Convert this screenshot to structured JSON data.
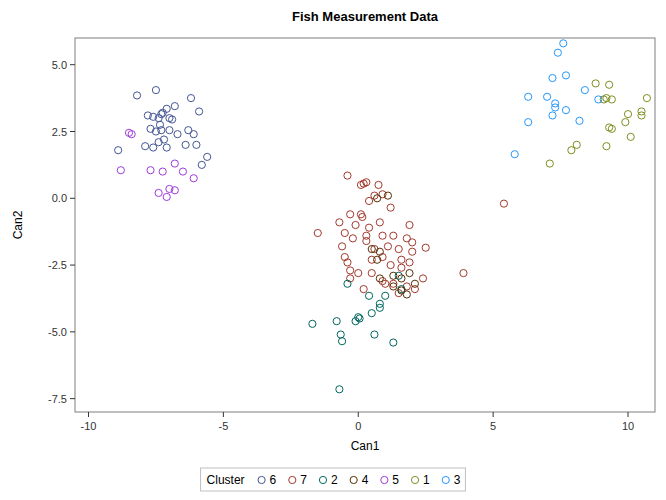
{
  "chart_data": {
    "type": "scatter",
    "title": "Fish Measurement Data",
    "x_label": "Can1",
    "y_label": "Can2",
    "legend_title": "Cluster",
    "legend": "bottom",
    "grid": false,
    "marker": "open-circle",
    "xlim": [
      -10.5,
      11
    ],
    "ylim": [
      -8,
      6
    ],
    "xticks": [
      -10,
      -5,
      0,
      5,
      10
    ],
    "yticks": [
      {
        "value": -7.5,
        "label": "-7.5"
      },
      {
        "value": -5,
        "label": "-5.0"
      },
      {
        "value": -2.5,
        "label": "-2.5"
      },
      {
        "value": 0,
        "label": "0.0"
      },
      {
        "value": 2.5,
        "label": "2.5"
      },
      {
        "value": 5,
        "label": "5.0"
      }
    ],
    "series": [
      {
        "name": "6",
        "color": "#445694",
        "x": [
          -8.9,
          -8.2,
          -7.5,
          -6.2,
          -5.9,
          -7.8,
          -7.6,
          -7.4,
          -7.3,
          -7.25,
          -7.0,
          -6.8,
          -7.1,
          -6.9,
          -7.7,
          -7.5,
          -7.3,
          -7.0,
          -6.7,
          -6.3,
          -6.1,
          -7.2,
          -7.4,
          -7.6,
          -7.9,
          -7.1,
          -6.4,
          -6.0,
          -5.8,
          -5.6,
          -7.35
        ],
        "values": [
          1.8,
          3.85,
          4.05,
          3.75,
          3.25,
          3.1,
          3.05,
          3.0,
          3.15,
          3.2,
          3.0,
          3.45,
          3.35,
          2.95,
          2.6,
          2.5,
          2.55,
          2.55,
          2.4,
          2.55,
          2.4,
          2.2,
          2.1,
          1.9,
          1.95,
          1.9,
          2.0,
          2.0,
          1.25,
          1.55,
          2.75
        ]
      },
      {
        "name": "7",
        "color": "#A23A2E",
        "x": [
          -0.4,
          0.1,
          0.3,
          0.2,
          0.75,
          0.6,
          0.9,
          1.2,
          0.4,
          -0.7,
          -0.3,
          0.15,
          0.1,
          -0.1,
          0.4,
          0.8,
          1.9,
          -1.5,
          -0.5,
          -0.2,
          0.3,
          0.9,
          1.3,
          1.8,
          -0.6,
          0.3,
          0.6,
          1.1,
          1.5,
          2.0,
          2.5,
          -0.5,
          -0.4,
          0.5,
          0.9,
          1.6,
          2.0,
          -0.3,
          0.0,
          0.5,
          1.2,
          1.6,
          1.9,
          2.4,
          0.2,
          -0.3,
          1.3,
          1.8,
          2.1,
          3.9,
          1.5,
          0.9,
          1.0,
          5.4
        ],
        "values": [
          0.85,
          0.5,
          0.6,
          0.55,
          0.5,
          0.1,
          0.15,
          -0.35,
          -0.1,
          -0.9,
          -0.6,
          -0.7,
          -0.6,
          -1.0,
          -1.1,
          -0.9,
          -1.0,
          -1.3,
          -1.3,
          -1.5,
          -1.4,
          -1.4,
          -1.4,
          -1.5,
          -1.8,
          -1.6,
          -1.9,
          -1.8,
          -1.9,
          -1.65,
          -1.85,
          -2.2,
          -2.4,
          -2.3,
          -2.2,
          -2.3,
          -2.0,
          -2.7,
          -2.8,
          -2.8,
          -2.5,
          -2.6,
          -2.4,
          -3.0,
          -3.4,
          -3.0,
          -3.2,
          -3.3,
          -3.4,
          -2.8,
          -3.55,
          -3.1,
          -3.2,
          -0.2
        ]
      },
      {
        "name": "2",
        "color": "#01665E",
        "x": [
          -1.7,
          -0.8,
          -0.65,
          -0.6,
          -0.4,
          -0.1,
          0.0,
          0.05,
          0.4,
          0.6,
          0.8,
          0.8,
          1.0,
          1.3,
          -0.7,
          0.5,
          1.6,
          1.5
        ],
        "values": [
          -4.7,
          -4.6,
          -5.1,
          -5.35,
          -3.2,
          -4.6,
          -4.45,
          -4.5,
          -3.65,
          -5.1,
          -4.1,
          -3.95,
          -3.65,
          -5.4,
          -7.15,
          -4.3,
          -3.4,
          -2.9
        ]
      },
      {
        "name": "4",
        "color": "#543005",
        "x": [
          0.7,
          1.1,
          0.5,
          0.8,
          1.3,
          1.6,
          1.8,
          1.3,
          1.6,
          2.1,
          0.7,
          1.9,
          0.8
        ],
        "values": [
          0.0,
          0.1,
          -1.9,
          -2.0,
          -2.9,
          -3.0,
          -3.6,
          -3.3,
          -3.45,
          -3.2,
          -2.3,
          -2.8,
          -3.0
        ]
      },
      {
        "name": "5",
        "color": "#9D3CDB",
        "x": [
          -8.5,
          -8.4,
          -8.8,
          -7.7,
          -7.4,
          -7.1,
          -7.0,
          -6.8,
          -6.8,
          -6.5,
          -6.1,
          -7.25
        ],
        "values": [
          2.45,
          2.4,
          1.05,
          1.05,
          0.2,
          0.05,
          0.35,
          0.3,
          1.3,
          1.0,
          0.75,
          1.0
        ]
      },
      {
        "name": "1",
        "color": "#7F8E1F",
        "x": [
          7.1,
          7.9,
          8.1,
          8.8,
          9.3,
          9.2,
          9.4,
          10.7,
          9.4,
          9.3,
          9.2,
          10.0,
          10.5,
          10.5,
          10.1,
          9.9,
          9.1
        ],
        "values": [
          1.3,
          1.8,
          2.0,
          4.3,
          4.25,
          3.75,
          3.7,
          3.75,
          2.6,
          2.65,
          1.95,
          3.15,
          3.1,
          3.25,
          2.3,
          2.85,
          3.7
        ]
      },
      {
        "name": "3",
        "color": "#2597FA",
        "x": [
          7.6,
          7.4,
          7.2,
          7.7,
          8.4,
          6.3,
          7.0,
          7.3,
          7.7,
          6.3,
          7.2,
          8.2,
          5.8,
          8.9,
          7.3
        ],
        "values": [
          5.8,
          5.45,
          4.5,
          4.6,
          4.05,
          3.8,
          3.8,
          3.55,
          3.3,
          2.85,
          3.1,
          2.9,
          1.65,
          3.7,
          3.4
        ]
      }
    ]
  }
}
